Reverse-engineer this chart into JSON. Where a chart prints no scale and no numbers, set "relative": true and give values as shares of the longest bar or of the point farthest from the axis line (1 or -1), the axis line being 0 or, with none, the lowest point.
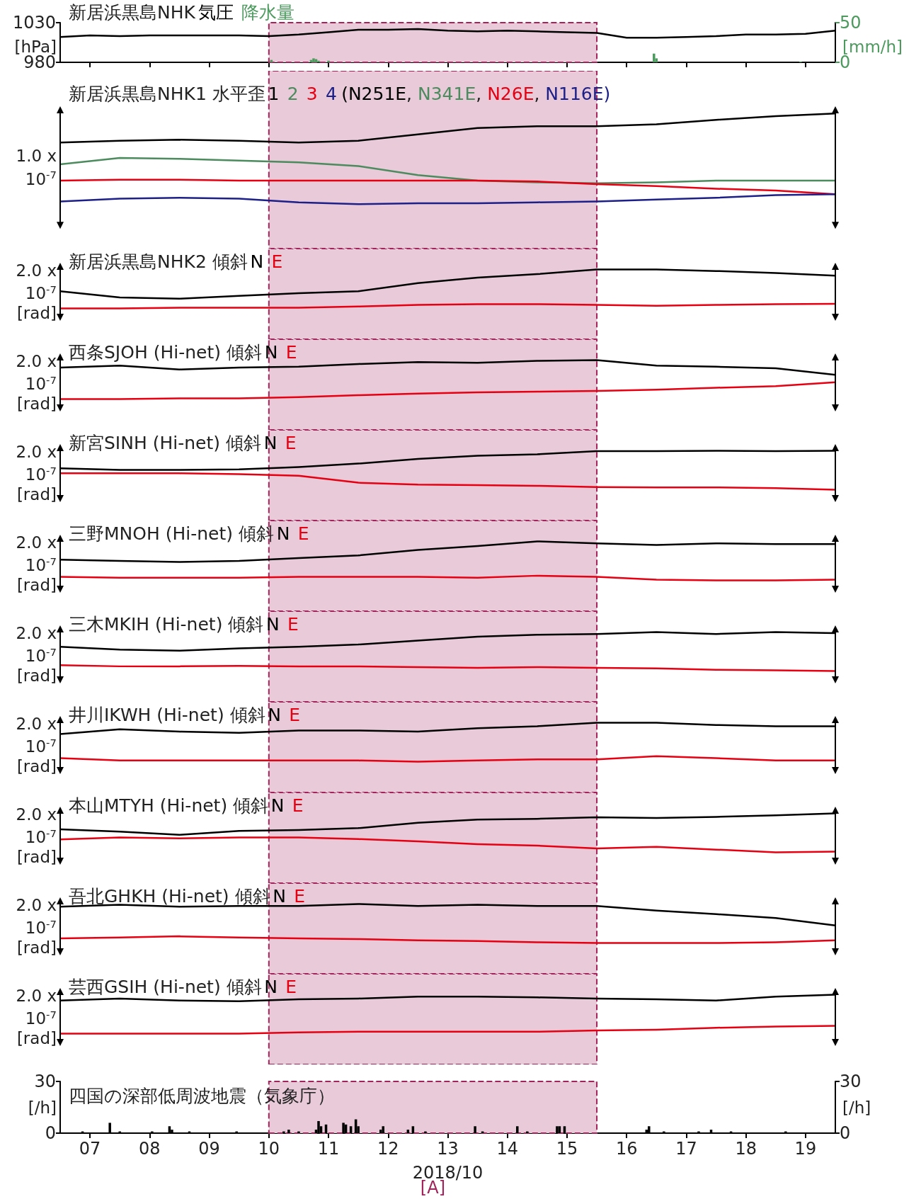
{
  "chart_data": [
    {
      "type": "line",
      "title": "新居浜黒島NHK",
      "ylabel": "[hPa]",
      "y2label": "[mm/h]",
      "tick_labels": "y",
      "x": [
        "2018-10-06T12:00",
        "2018-10-07T00:00",
        "2018-10-07T12:00",
        "2018-10-08T00:00",
        "2018-10-08T12:00",
        "2018-10-09T00:00",
        "2018-10-09T12:00",
        "2018-10-10T00:00",
        "2018-10-10T12:00",
        "2018-10-11T00:00",
        "2018-10-11T12:00",
        "2018-10-12T00:00",
        "2018-10-12T12:00",
        "2018-10-13T00:00",
        "2018-10-13T12:00",
        "2018-10-14T00:00",
        "2018-10-14T12:00",
        "2018-10-15T00:00",
        "2018-10-15T12:00",
        "2018-10-16T00:00",
        "2018-10-16T12:00",
        "2018-10-17T00:00",
        "2018-10-17T12:00",
        "2018-10-18T00:00",
        "2018-10-18T12:00",
        "2018-10-19T00:00",
        "2018-10-19T12:00"
      ],
      "xlim": [
        "2018-10-06T12:00",
        "2018-10-19T12:00"
      ],
      "xticks": [
        {
          "value": "2018-10-07",
          "label": null
        },
        {
          "value": "2018-10-08",
          "label": null
        },
        {
          "value": "2018-10-09",
          "label": null
        },
        {
          "value": "2018-10-10",
          "label": null
        },
        {
          "value": "2018-10-11",
          "label": null
        },
        {
          "value": "2018-10-12",
          "label": null
        },
        {
          "value": "2018-10-13",
          "label": null
        },
        {
          "value": "2018-10-14",
          "label": null
        },
        {
          "value": "2018-10-15",
          "label": null
        },
        {
          "value": "2018-10-16",
          "label": null
        },
        {
          "value": "2018-10-17",
          "label": null
        },
        {
          "value": "2018-10-18",
          "label": null
        },
        {
          "value": "2018-10-19",
          "label": null
        }
      ],
      "ylim": [
        980,
        1030
      ],
      "yticks": [
        980,
        1030
      ],
      "y2lim": [
        0,
        50
      ],
      "y2ticks": [
        0,
        50
      ],
      "bands": [
        {
          "axis": "x",
          "from": "2018-10-10",
          "to": "2018-10-15T12:00",
          "color": "#e8cad8"
        }
      ],
      "series": [
        {
          "name": "気圧",
          "color": "#000000",
          "values": [
            1012,
            1014,
            1013,
            1014,
            1014,
            1014,
            1014,
            1013,
            1015,
            1018,
            1021,
            1021,
            1022,
            1020,
            1019,
            1020,
            1019,
            1018,
            1017,
            1011,
            1011,
            1012,
            1013,
            1015,
            1015,
            1016,
            1020
          ]
        },
        {
          "name": "降水量",
          "type": "bar",
          "axis": "y2",
          "color": "#4d9a5e",
          "x": [
            "2018-10-10T01:00",
            "2018-10-10T17:00",
            "2018-10-10T18:00",
            "2018-10-10T19:00",
            "2018-10-10T20:00",
            "2018-10-11T00:00",
            "2018-10-16T11:00",
            "2018-10-16T12:00",
            "2018-10-18T22:00"
          ],
          "values": [
            3,
            3,
            5,
            4,
            2,
            2,
            11,
            5,
            1
          ]
        }
      ]
    },
    {
      "type": "line",
      "title": "新居浜黒島NHK1 水平歪",
      "subtitle": "(N251E, N341E, N26E, N116E)",
      "ylabel": "1.0 x 10$^{-7}$",
      "relative": true,
      "tick_labels": false,
      "x": [
        "2018-10-06T12:00",
        "2018-10-07T12:00",
        "2018-10-08T12:00",
        "2018-10-09T12:00",
        "2018-10-10T12:00",
        "2018-10-11T12:00",
        "2018-10-12T12:00",
        "2018-10-13T12:00",
        "2018-10-14T12:00",
        "2018-10-15T12:00",
        "2018-10-16T12:00",
        "2018-10-17T12:00",
        "2018-10-18T12:00",
        "2018-10-19T12:00"
      ],
      "xlim": [
        "2018-10-06T12:00",
        "2018-10-19T12:00"
      ],
      "bands": [
        {
          "axis": "x",
          "from": "2018-10-10",
          "to": "2018-10-15T12:00",
          "color": "#e8cad8"
        }
      ],
      "series": [
        {
          "name": "1",
          "color": "#000000",
          "values": [
            0.68,
            0.7,
            0.71,
            0.7,
            0.68,
            0.7,
            0.77,
            0.84,
            0.86,
            0.86,
            0.88,
            0.93,
            0.97,
            1.0
          ]
        },
        {
          "name": "2",
          "color": "#4b8b5e",
          "values": [
            0.44,
            0.51,
            0.5,
            0.48,
            0.46,
            0.42,
            0.32,
            0.26,
            0.24,
            0.23,
            0.24,
            0.26,
            0.26,
            0.26
          ]
        },
        {
          "name": "3",
          "color": "#e60012",
          "values": [
            0.26,
            0.27,
            0.27,
            0.26,
            0.26,
            0.26,
            0.26,
            0.26,
            0.25,
            0.22,
            0.2,
            0.17,
            0.15,
            0.11
          ]
        },
        {
          "name": "4",
          "color": "#1d2088",
          "values": [
            0.03,
            0.06,
            0.07,
            0.06,
            0.02,
            0.0,
            0.01,
            0.01,
            0.02,
            0.03,
            0.05,
            0.07,
            0.1,
            0.11
          ]
        }
      ]
    },
    {
      "type": "line",
      "title": "新居浜黒島NHK2 傾斜",
      "ylabel": "2.0 x 10$^{-7}$ [rad]",
      "relative": true,
      "tick_labels": false,
      "x": [
        "2018-10-06T12:00",
        "2018-10-07T12:00",
        "2018-10-08T12:00",
        "2018-10-09T12:00",
        "2018-10-10T12:00",
        "2018-10-11T12:00",
        "2018-10-12T12:00",
        "2018-10-13T12:00",
        "2018-10-14T12:00",
        "2018-10-15T12:00",
        "2018-10-16T12:00",
        "2018-10-17T12:00",
        "2018-10-18T12:00",
        "2018-10-19T12:00"
      ],
      "xlim": [
        "2018-10-06T12:00",
        "2018-10-19T12:00"
      ],
      "bands": [
        {
          "axis": "x",
          "from": "2018-10-10",
          "to": "2018-10-15T12:00",
          "color": "#e8cad8"
        }
      ],
      "series": [
        {
          "name": "N",
          "color": "#000000",
          "values": [
            0.44,
            0.28,
            0.25,
            0.32,
            0.39,
            0.44,
            0.65,
            0.79,
            0.88,
            1.0,
            1.0,
            0.96,
            0.91,
            0.84
          ]
        },
        {
          "name": "E",
          "color": "#e60012",
          "values": [
            0.0,
            0.0,
            0.02,
            0.02,
            0.02,
            0.05,
            0.09,
            0.11,
            0.11,
            0.09,
            0.07,
            0.09,
            0.11,
            0.12
          ]
        }
      ]
    },
    {
      "type": "line",
      "title": "西条SJOH (Hi-net) 傾斜",
      "ylabel": "2.0 x 10$^{-7}$ [rad]",
      "relative": true,
      "tick_labels": false,
      "x": [
        "2018-10-06T12:00",
        "2018-10-07T12:00",
        "2018-10-08T12:00",
        "2018-10-09T12:00",
        "2018-10-10T12:00",
        "2018-10-11T12:00",
        "2018-10-12T12:00",
        "2018-10-13T12:00",
        "2018-10-14T12:00",
        "2018-10-15T12:00",
        "2018-10-16T12:00",
        "2018-10-17T12:00",
        "2018-10-18T12:00",
        "2018-10-19T12:00"
      ],
      "xlim": [
        "2018-10-06T12:00",
        "2018-10-19T12:00"
      ],
      "bands": [
        {
          "axis": "x",
          "from": "2018-10-10",
          "to": "2018-10-15T12:00",
          "color": "#e8cad8"
        }
      ],
      "series": [
        {
          "name": "N",
          "color": "#000000",
          "values": [
            0.81,
            0.86,
            0.76,
            0.81,
            0.83,
            0.9,
            0.95,
            0.93,
            0.98,
            1.0,
            0.86,
            0.83,
            0.79,
            0.62
          ]
        },
        {
          "name": "E",
          "color": "#e60012",
          "values": [
            0.0,
            0.0,
            0.02,
            0.02,
            0.05,
            0.1,
            0.14,
            0.17,
            0.19,
            0.21,
            0.24,
            0.29,
            0.33,
            0.43
          ]
        }
      ]
    },
    {
      "type": "line",
      "title": "新宮SINH (Hi-net) 傾斜",
      "ylabel": "2.0 x 10$^{-7}$ [rad]",
      "relative": true,
      "tick_labels": false,
      "x": [
        "2018-10-06T12:00",
        "2018-10-07T12:00",
        "2018-10-08T12:00",
        "2018-10-09T12:00",
        "2018-10-10T12:00",
        "2018-10-11T12:00",
        "2018-10-12T12:00",
        "2018-10-13T12:00",
        "2018-10-14T12:00",
        "2018-10-15T12:00",
        "2018-10-16T12:00",
        "2018-10-17T12:00",
        "2018-10-18T12:00",
        "2018-10-19T12:00"
      ],
      "xlim": [
        "2018-10-06T12:00",
        "2018-10-19T12:00"
      ],
      "bands": [
        {
          "axis": "x",
          "from": "2018-10-10",
          "to": "2018-10-15T12:00",
          "color": "#e8cad8"
        }
      ],
      "series": [
        {
          "name": "N",
          "color": "#000000",
          "values": [
            0.55,
            0.51,
            0.51,
            0.52,
            0.58,
            0.67,
            0.79,
            0.87,
            0.91,
            0.99,
            0.99,
            1.0,
            0.99,
            1.0
          ]
        },
        {
          "name": "E",
          "color": "#e60012",
          "values": [
            0.42,
            0.42,
            0.42,
            0.4,
            0.36,
            0.18,
            0.13,
            0.12,
            0.1,
            0.07,
            0.06,
            0.06,
            0.04,
            0.0
          ]
        }
      ]
    },
    {
      "type": "line",
      "title": "三野MNOH (Hi-net) 傾斜",
      "ylabel": "2.0 x 10$^{-7}$ [rad]",
      "relative": true,
      "tick_labels": false,
      "x": [
        "2018-10-06T12:00",
        "2018-10-07T12:00",
        "2018-10-08T12:00",
        "2018-10-09T12:00",
        "2018-10-10T12:00",
        "2018-10-11T12:00",
        "2018-10-12T12:00",
        "2018-10-13T12:00",
        "2018-10-14T12:00",
        "2018-10-15T12:00",
        "2018-10-16T12:00",
        "2018-10-17T12:00",
        "2018-10-18T12:00",
        "2018-10-19T12:00"
      ],
      "xlim": [
        "2018-10-06T12:00",
        "2018-10-19T12:00"
      ],
      "bands": [
        {
          "axis": "x",
          "from": "2018-10-10",
          "to": "2018-10-15T12:00",
          "color": "#e8cad8"
        }
      ],
      "series": [
        {
          "name": "N",
          "color": "#000000",
          "values": [
            0.53,
            0.5,
            0.47,
            0.5,
            0.57,
            0.64,
            0.78,
            0.88,
            1.0,
            0.95,
            0.91,
            0.95,
            0.93,
            0.93
          ]
        },
        {
          "name": "E",
          "color": "#e60012",
          "values": [
            0.09,
            0.07,
            0.07,
            0.07,
            0.09,
            0.09,
            0.09,
            0.07,
            0.12,
            0.09,
            0.02,
            0.0,
            0.0,
            0.02
          ]
        }
      ]
    },
    {
      "type": "line",
      "title": "三木MKIH (Hi-net) 傾斜",
      "ylabel": "2.0 x 10$^{-7}$ [rad]",
      "relative": true,
      "tick_labels": false,
      "x": [
        "2018-10-06T12:00",
        "2018-10-07T12:00",
        "2018-10-08T12:00",
        "2018-10-09T12:00",
        "2018-10-10T12:00",
        "2018-10-11T12:00",
        "2018-10-12T12:00",
        "2018-10-13T12:00",
        "2018-10-14T12:00",
        "2018-10-15T12:00",
        "2018-10-16T12:00",
        "2018-10-17T12:00",
        "2018-10-18T12:00",
        "2018-10-19T12:00"
      ],
      "xlim": [
        "2018-10-06T12:00",
        "2018-10-19T12:00"
      ],
      "bands": [
        {
          "axis": "x",
          "from": "2018-10-10",
          "to": "2018-10-15T12:00",
          "color": "#e8cad8"
        }
      ],
      "series": [
        {
          "name": "N",
          "color": "#000000",
          "values": [
            0.62,
            0.55,
            0.52,
            0.58,
            0.62,
            0.68,
            0.78,
            0.88,
            0.93,
            0.95,
            1.0,
            0.95,
            1.0,
            0.97
          ]
        },
        {
          "name": "E",
          "color": "#e60012",
          "values": [
            0.15,
            0.12,
            0.12,
            0.13,
            0.12,
            0.12,
            0.1,
            0.08,
            0.1,
            0.08,
            0.07,
            0.03,
            0.02,
            0.0
          ]
        }
      ]
    },
    {
      "type": "line",
      "title": "井川IKWH (Hi-net) 傾斜",
      "ylabel": "2.0 x 10$^{-7}$ [rad]",
      "relative": true,
      "tick_labels": false,
      "x": [
        "2018-10-06T12:00",
        "2018-10-07T12:00",
        "2018-10-08T12:00",
        "2018-10-09T12:00",
        "2018-10-10T12:00",
        "2018-10-11T12:00",
        "2018-10-12T12:00",
        "2018-10-13T12:00",
        "2018-10-14T12:00",
        "2018-10-15T12:00",
        "2018-10-16T12:00",
        "2018-10-17T12:00",
        "2018-10-18T12:00",
        "2018-10-19T12:00"
      ],
      "xlim": [
        "2018-10-06T12:00",
        "2018-10-19T12:00"
      ],
      "bands": [
        {
          "axis": "x",
          "from": "2018-10-10",
          "to": "2018-10-15T12:00",
          "color": "#e8cad8"
        }
      ],
      "series": [
        {
          "name": "N",
          "color": "#000000",
          "values": [
            0.71,
            0.83,
            0.77,
            0.74,
            0.8,
            0.8,
            0.77,
            0.86,
            0.91,
            1.0,
            1.0,
            0.94,
            0.91,
            0.91
          ]
        },
        {
          "name": "E",
          "color": "#e60012",
          "values": [
            0.09,
            0.03,
            0.03,
            0.03,
            0.03,
            0.03,
            0.0,
            0.03,
            0.06,
            0.06,
            0.14,
            0.09,
            0.03,
            0.03
          ]
        }
      ]
    },
    {
      "type": "line",
      "title": "本山MTYH (Hi-net) 傾斜",
      "ylabel": "2.0 x 10$^{-7}$ [rad]",
      "relative": true,
      "tick_labels": false,
      "x": [
        "2018-10-06T12:00",
        "2018-10-07T12:00",
        "2018-10-08T12:00",
        "2018-10-09T12:00",
        "2018-10-10T12:00",
        "2018-10-11T12:00",
        "2018-10-12T12:00",
        "2018-10-13T12:00",
        "2018-10-14T12:00",
        "2018-10-15T12:00",
        "2018-10-16T12:00",
        "2018-10-17T12:00",
        "2018-10-18T12:00",
        "2018-10-19T12:00"
      ],
      "xlim": [
        "2018-10-06T12:00",
        "2018-10-19T12:00"
      ],
      "bands": [
        {
          "axis": "x",
          "from": "2018-10-10",
          "to": "2018-10-15T12:00",
          "color": "#e8cad8"
        }
      ],
      "series": [
        {
          "name": "N",
          "color": "#000000",
          "values": [
            0.59,
            0.53,
            0.45,
            0.55,
            0.57,
            0.62,
            0.76,
            0.84,
            0.86,
            0.9,
            0.88,
            0.91,
            0.95,
            1.0
          ]
        },
        {
          "name": "E",
          "color": "#e60012",
          "values": [
            0.33,
            0.38,
            0.36,
            0.38,
            0.38,
            0.34,
            0.28,
            0.21,
            0.17,
            0.1,
            0.14,
            0.07,
            0.0,
            0.02
          ]
        }
      ]
    },
    {
      "type": "line",
      "title": "吾北GHKH (Hi-net) 傾斜",
      "ylabel": "2.0 x 10$^{-7}$ [rad]",
      "relative": true,
      "tick_labels": false,
      "x": [
        "2018-10-06T12:00",
        "2018-10-07T12:00",
        "2018-10-08T12:00",
        "2018-10-09T12:00",
        "2018-10-10T12:00",
        "2018-10-11T12:00",
        "2018-10-12T12:00",
        "2018-10-13T12:00",
        "2018-10-14T12:00",
        "2018-10-15T12:00",
        "2018-10-16T12:00",
        "2018-10-17T12:00",
        "2018-10-18T12:00",
        "2018-10-19T12:00"
      ],
      "xlim": [
        "2018-10-06T12:00",
        "2018-10-19T12:00"
      ],
      "bands": [
        {
          "axis": "x",
          "from": "2018-10-10",
          "to": "2018-10-15T12:00",
          "color": "#e8cad8"
        }
      ],
      "series": [
        {
          "name": "N",
          "color": "#000000",
          "values": [
            0.93,
            0.98,
            0.93,
            0.95,
            0.95,
            1.0,
            0.95,
            0.98,
            0.95,
            0.95,
            0.83,
            0.74,
            0.64,
            0.45
          ]
        },
        {
          "name": "E",
          "color": "#e60012",
          "values": [
            0.12,
            0.14,
            0.17,
            0.14,
            0.12,
            0.1,
            0.07,
            0.05,
            0.02,
            0.0,
            0.0,
            0.0,
            0.02,
            0.07
          ]
        }
      ]
    },
    {
      "type": "line",
      "title": "芸西GSIH (Hi-net) 傾斜",
      "ylabel": "2.0 x 10$^{-7}$ [rad]",
      "relative": true,
      "tick_labels": false,
      "x": [
        "2018-10-06T12:00",
        "2018-10-07T12:00",
        "2018-10-08T12:00",
        "2018-10-09T12:00",
        "2018-10-10T12:00",
        "2018-10-11T12:00",
        "2018-10-12T12:00",
        "2018-10-13T12:00",
        "2018-10-14T12:00",
        "2018-10-15T12:00",
        "2018-10-16T12:00",
        "2018-10-17T12:00",
        "2018-10-18T12:00",
        "2018-10-19T12:00"
      ],
      "xlim": [
        "2018-10-06T12:00",
        "2018-10-19T12:00"
      ],
      "bands": [
        {
          "axis": "x",
          "from": "2018-10-10",
          "to": "2018-10-15T12:00",
          "color": "#e8cad8"
        }
      ],
      "series": [
        {
          "name": "N",
          "color": "#000000",
          "values": [
            0.85,
            0.9,
            0.85,
            0.83,
            0.88,
            0.9,
            0.95,
            0.95,
            0.93,
            0.9,
            0.88,
            0.85,
            0.95,
            1.0
          ]
        },
        {
          "name": "E",
          "color": "#e60012",
          "values": [
            0.0,
            0.0,
            0.0,
            0.0,
            0.03,
            0.05,
            0.05,
            0.05,
            0.05,
            0.08,
            0.1,
            0.15,
            0.18,
            0.2
          ]
        }
      ]
    },
    {
      "type": "bar",
      "title": "四国の深部低周波地震（気象庁）",
      "xlabel": "2018/10",
      "ylabel": "[/h]",
      "y2label": "[/h]",
      "xlim": [
        "2018-10-06T12:00",
        "2018-10-19T12:00"
      ],
      "xticks": [
        {
          "value": "2018-10-07",
          "label": "07"
        },
        {
          "value": "2018-10-08",
          "label": "08"
        },
        {
          "value": "2018-10-09",
          "label": "09"
        },
        {
          "value": "2018-10-10",
          "label": "10"
        },
        {
          "value": "2018-10-11",
          "label": "11"
        },
        {
          "value": "2018-10-12",
          "label": "12"
        },
        {
          "value": "2018-10-13",
          "label": "13"
        },
        {
          "value": "2018-10-14",
          "label": "14"
        },
        {
          "value": "2018-10-15",
          "label": "15"
        },
        {
          "value": "2018-10-16",
          "label": "16"
        },
        {
          "value": "2018-10-17",
          "label": "17"
        },
        {
          "value": "2018-10-18",
          "label": "18"
        },
        {
          "value": "2018-10-19",
          "label": "19"
        }
      ],
      "ylim": [
        0,
        30
      ],
      "yticks": [
        0,
        30
      ],
      "y2lim": [
        0,
        30
      ],
      "y2ticks": [
        0,
        30
      ],
      "bands": [
        {
          "axis": "x",
          "from": "2018-10-10",
          "to": "2018-10-15T12:00",
          "color": "#e8cad8",
          "label": "[A]"
        }
      ],
      "x": [
        "2018-10-06T21:00",
        "2018-10-07T08:00",
        "2018-10-07T12:00",
        "2018-10-08T01:00",
        "2018-10-08T08:00",
        "2018-10-08T09:00",
        "2018-10-08T16:00",
        "2018-10-09T11:00",
        "2018-10-10T06:00",
        "2018-10-10T08:00",
        "2018-10-10T12:00",
        "2018-10-10T19:00",
        "2018-10-10T20:00",
        "2018-10-10T21:00",
        "2018-10-10T23:00",
        "2018-10-11T06:00",
        "2018-10-11T07:00",
        "2018-10-11T09:00",
        "2018-10-11T11:00",
        "2018-10-11T12:00",
        "2018-10-11T21:00",
        "2018-10-11T22:00",
        "2018-10-12T08:00",
        "2018-10-12T10:00",
        "2018-10-12T15:00",
        "2018-10-13T11:00",
        "2018-10-13T14:00",
        "2018-10-14T04:00",
        "2018-10-14T08:00",
        "2018-10-14T20:00",
        "2018-10-14T21:00",
        "2018-10-14T23:00",
        "2018-10-16T08:00",
        "2018-10-16T09:00",
        "2018-10-16T15:00",
        "2018-10-17T05:00",
        "2018-10-17T10:00",
        "2018-10-17T18:00",
        "2018-10-18T16:00"
      ],
      "series": [
        {
          "color": "#000000",
          "values": [
            1,
            6,
            1,
            1,
            4,
            2,
            1,
            1,
            1,
            2,
            1,
            2,
            7,
            4,
            5,
            6,
            5,
            4,
            8,
            4,
            2,
            4,
            2,
            4,
            1,
            4,
            1,
            4,
            1,
            4,
            4,
            4,
            2,
            4,
            1,
            1,
            2,
            1,
            1
          ]
        }
      ]
    }
  ]
}
